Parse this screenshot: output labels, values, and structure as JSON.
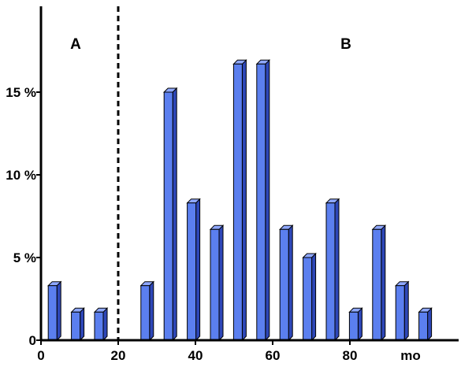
{
  "chart_data": {
    "type": "bar",
    "x": [
      3,
      9,
      15,
      27,
      33,
      39,
      45,
      51,
      57,
      63,
      69,
      75,
      81,
      87,
      93,
      99
    ],
    "values": [
      3.3,
      1.7,
      1.7,
      3.3,
      15,
      8.3,
      6.7,
      16.7,
      16.7,
      6.7,
      5,
      8.3,
      1.7,
      6.7,
      3.3,
      1.7
    ],
    "xlabel": "mo",
    "ylabel": "",
    "xlim": [
      0,
      120
    ],
    "ylim": [
      0,
      20
    ],
    "x_ticks": [
      {
        "value": 0,
        "label": "0"
      },
      {
        "value": 20,
        "label": "20"
      },
      {
        "value": 40,
        "label": "40"
      },
      {
        "value": 60,
        "label": "60"
      },
      {
        "value": 80,
        "label": "80"
      }
    ],
    "y_ticks": [
      {
        "value": 0,
        "label": "0"
      },
      {
        "value": 5,
        "label": "5 %"
      },
      {
        "value": 10,
        "label": "10 %"
      },
      {
        "value": 15,
        "label": "15 %"
      }
    ],
    "divider": {
      "x": 20,
      "style": "dashed"
    },
    "regions": [
      {
        "label": "A",
        "x": 10
      },
      {
        "label": "B",
        "x": 80
      }
    ],
    "bar_color": "#5B7FEF",
    "bar_side_color": "#2E47B8",
    "bar_top_color": "#8FA8FF",
    "grid": false,
    "legend": "none"
  }
}
